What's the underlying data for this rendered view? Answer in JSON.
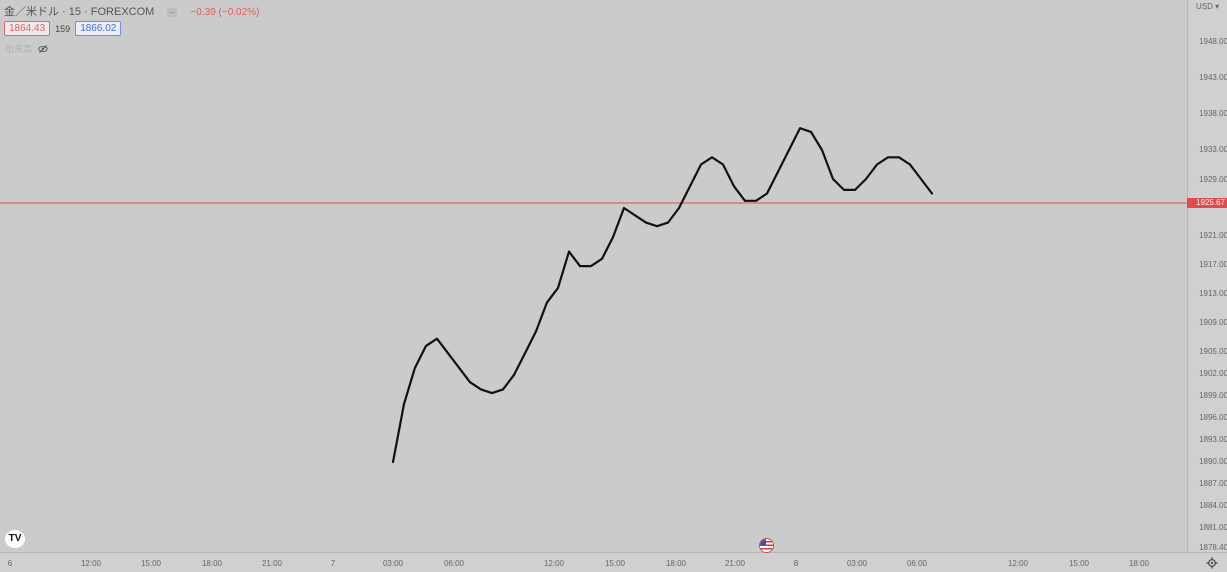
{
  "legend": {
    "symbol": "金／米ドル · 15 · FOREXCOM",
    "change": "−0.39 (−0.02%)",
    "bid": "1864.43",
    "spread": "159",
    "ask": "1866.02",
    "indicator": "出来高"
  },
  "price_axis": {
    "currency": "USD ▾",
    "labels": [
      "1948.00",
      "1943.00",
      "1938.00",
      "1933.00",
      "1929.00",
      "1921.00",
      "1917.00",
      "1913.00",
      "1909.00",
      "1905.00",
      "1902.00",
      "1899.00",
      "1896.00",
      "1893.00",
      "1890.00",
      "1887.00",
      "1884.00",
      "1881.00",
      "1878.40"
    ],
    "current_price": "1925.67",
    "line_color": "#e04b4b"
  },
  "time_axis": {
    "labels": [
      "6",
      "12:00",
      "15:00",
      "18:00",
      "21:00",
      "7",
      "03:00",
      "06:00",
      "12:00",
      "15:00",
      "18:00",
      "21:00",
      "8",
      "03:00",
      "06:00",
      "12:00",
      "15:00",
      "18:00"
    ]
  },
  "icons": {
    "logo": "TV",
    "flag": "us-flag-icon",
    "settings": "gear-icon"
  },
  "chart_data": {
    "type": "line",
    "series": [
      {
        "values": [
          1890,
          1898,
          1903,
          1906,
          1907,
          1905,
          1903,
          1901,
          1900,
          1899.5,
          1900,
          1902,
          1905,
          1908,
          1912,
          1914,
          1919,
          1917,
          1917,
          1918,
          1921,
          1925,
          1924,
          1923,
          1922.5,
          1923,
          1925,
          1928,
          1931,
          1932,
          1931,
          1928,
          1926,
          1926,
          1927,
          1930,
          1933,
          1936,
          1935.5,
          1933,
          1929,
          1927.5,
          1927.5,
          1929,
          1931,
          1932,
          1932,
          1931,
          1929,
          1927
        ]
      }
    ],
    "ylim": [
      1878.4,
      1950
    ]
  }
}
